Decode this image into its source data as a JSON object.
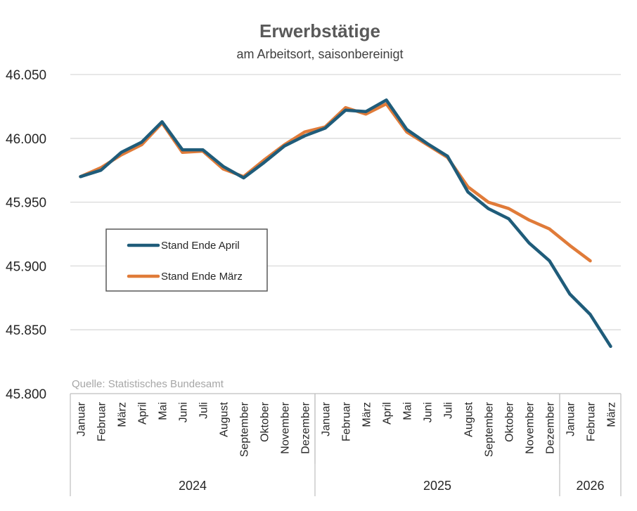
{
  "chart_data": {
    "type": "line",
    "title": "Erwerbstätige",
    "subtitle": "am Arbeitsort, saisonbereinigt",
    "source": "Quelle: Statistisches Bundesamt",
    "ylim": [
      45800,
      46050
    ],
    "yticks": [
      "45.800",
      "45.850",
      "45.900",
      "45.950",
      "46.000",
      "46.050"
    ],
    "ytick_values": [
      45800,
      45850,
      45900,
      45950,
      46000,
      46050
    ],
    "grid": true,
    "legend_position": "left-middle",
    "categories": [
      "Januar",
      "Februar",
      "März",
      "April",
      "Mai",
      "Juni",
      "Juli",
      "August",
      "September",
      "Oktober",
      "November",
      "Dezember",
      "Januar",
      "Februar",
      "März",
      "April",
      "Mai",
      "Juni",
      "Juli",
      "August",
      "September",
      "Oktober",
      "November",
      "Dezember",
      "Januar",
      "Februar",
      "März"
    ],
    "year_groups": [
      {
        "label": "2024",
        "count": 12
      },
      {
        "label": "2025",
        "count": 12
      },
      {
        "label": "2026",
        "count": 3
      }
    ],
    "series": [
      {
        "name": "Stand Ende April",
        "color": "#1f5c7a",
        "values": [
          45970,
          45975,
          45989,
          45997,
          46013,
          45991,
          45991,
          45978,
          45969,
          45981,
          45994,
          46002,
          46008,
          46022,
          46021,
          46030,
          46007,
          45996,
          45986,
          45958,
          45945,
          45937,
          45918,
          45904,
          45878,
          45862,
          45837
        ]
      },
      {
        "name": "Stand Ende März",
        "color": "#e07b39",
        "values": [
          45970,
          45977,
          45987,
          45995,
          46012,
          45989,
          45990,
          45976,
          45970,
          45983,
          45995,
          46005,
          46009,
          46024,
          46019,
          46027,
          46005,
          45995,
          45985,
          45962,
          45950,
          45945,
          45936,
          45929,
          45916,
          45904,
          null
        ]
      }
    ]
  }
}
